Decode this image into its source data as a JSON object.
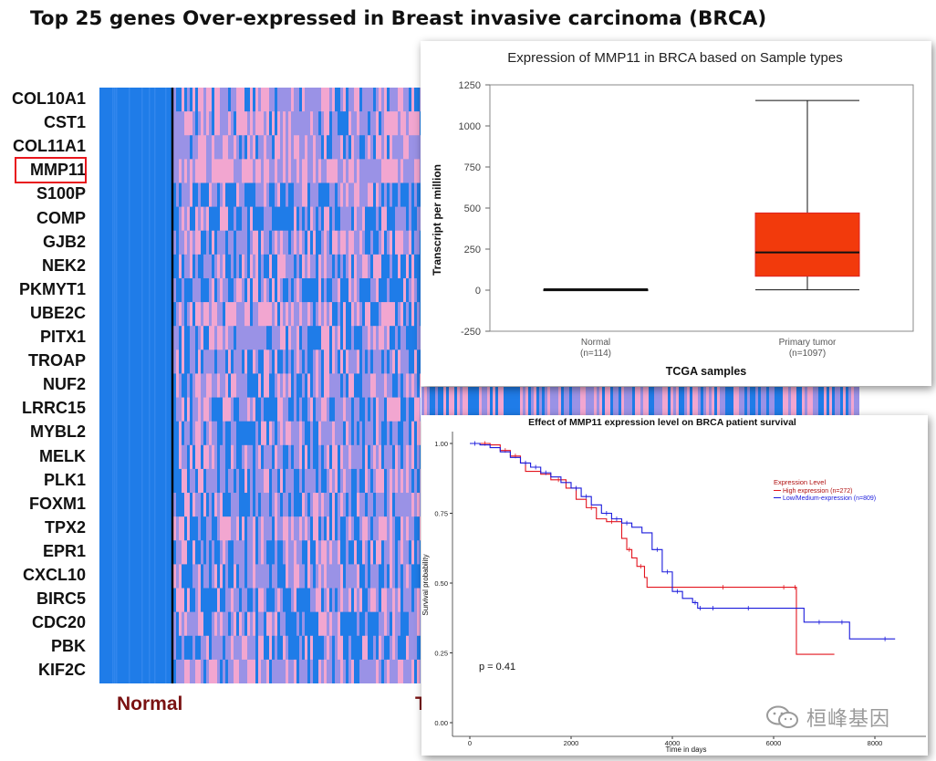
{
  "title": "Top 25 genes Over-expressed in Breast invasive carcinoma (BRCA)",
  "heatmap": {
    "genes": [
      "COL10A1",
      "CST1",
      "COL11A1",
      "MMP11",
      "S100P",
      "COMP",
      "GJB2",
      "NEK2",
      "PKMYT1",
      "UBE2C",
      "PITX1",
      "TROAP",
      "NUF2",
      "LRRC15",
      "MYBL2",
      "MELK",
      "PLK1",
      "FOXM1",
      "TPX2",
      "EPR1",
      "CXCL10",
      "BIRC5",
      "CDC20",
      "PBK",
      "KIF2C"
    ],
    "highlighted_gene": "MMP11",
    "group_labels": {
      "normal": "Normal",
      "tumor_partial": "T"
    },
    "colors": {
      "low": "#1f7ce8",
      "mid": "#9a92e6",
      "high": "#f2a6d0"
    }
  },
  "chart_data": [
    {
      "type": "box",
      "title": "Expression of MMP11 in BRCA based on Sample types",
      "xlabel": "TCGA samples",
      "ylabel": "Transcript per million",
      "ylim": [
        -250,
        1250
      ],
      "yticks": [
        -250,
        0,
        250,
        500,
        750,
        1000,
        1250
      ],
      "groups": [
        {
          "name": "Normal",
          "n_label": "(n=114)",
          "min": 0,
          "q1": 0,
          "median": 0,
          "q3": 5,
          "max": 8,
          "color": "#222222"
        },
        {
          "name": "Primary tumor",
          "n_label": "(n=1097)",
          "min": 2,
          "q1": 85,
          "median": 230,
          "q3": 470,
          "max": 1155,
          "color": "#f23a0c"
        }
      ]
    },
    {
      "type": "line",
      "subtype": "kaplan-meier",
      "title": "Effect of MMP11 expression level on BRCA patient survival",
      "xlabel": "Time in days",
      "ylabel": "Survival probability",
      "xlim": [
        0,
        8600
      ],
      "ylim": [
        0,
        1.0
      ],
      "xticks": [
        0,
        2000,
        4000,
        6000,
        8000
      ],
      "yticks": [
        "0.00",
        "0.25",
        "0.50",
        "0.75",
        "1.00"
      ],
      "legend_title": "Expression Level",
      "annotation": "p = 0.41",
      "series": [
        {
          "name": "High expression (n=272)",
          "color": "#e3141e",
          "x": [
            0,
            200,
            400,
            600,
            800,
            1000,
            1100,
            1400,
            1600,
            1900,
            2100,
            2300,
            2500,
            2700,
            2900,
            3000,
            3100,
            3200,
            3300,
            3450,
            3500,
            4000,
            6000,
            6400,
            6450,
            7200
          ],
          "y": [
            1.0,
            1.0,
            0.995,
            0.975,
            0.955,
            0.93,
            0.9,
            0.89,
            0.87,
            0.84,
            0.8,
            0.77,
            0.73,
            0.72,
            0.72,
            0.66,
            0.62,
            0.59,
            0.56,
            0.52,
            0.485,
            0.485,
            0.485,
            0.485,
            0.245,
            0.245
          ]
        },
        {
          "name": "Low/Medium-expression (n=809)",
          "color": "#1a1adc",
          "x": [
            0,
            200,
            400,
            600,
            800,
            1000,
            1200,
            1400,
            1600,
            1800,
            2000,
            2200,
            2400,
            2600,
            2800,
            3000,
            3200,
            3400,
            3600,
            3800,
            4000,
            4200,
            4400,
            4500,
            4600,
            5000,
            6000,
            6500,
            6600,
            7200,
            7500,
            8000,
            8400
          ],
          "y": [
            1.0,
            0.995,
            0.985,
            0.97,
            0.95,
            0.93,
            0.915,
            0.895,
            0.88,
            0.86,
            0.84,
            0.81,
            0.78,
            0.75,
            0.73,
            0.715,
            0.7,
            0.68,
            0.62,
            0.54,
            0.47,
            0.445,
            0.43,
            0.41,
            0.41,
            0.41,
            0.41,
            0.41,
            0.36,
            0.36,
            0.3,
            0.3,
            0.3
          ]
        }
      ]
    }
  ],
  "watermark": {
    "text": "桓峰基因",
    "icon": "wechat-icon"
  }
}
